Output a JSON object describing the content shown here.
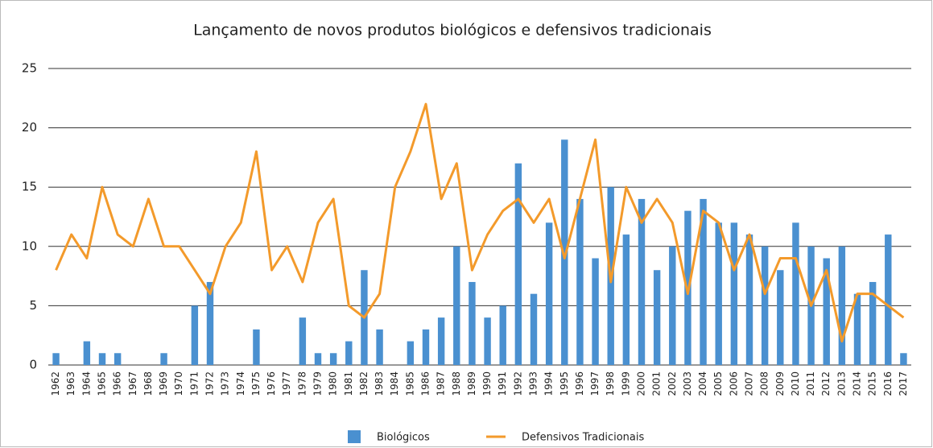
{
  "chart_data": {
    "type": "bar_line",
    "title": "Lançamento de novos produtos biológicos e defensivos tradicionais",
    "categories": [
      "1962",
      "1963",
      "1964",
      "1965",
      "1966",
      "1967",
      "1968",
      "1969",
      "1970",
      "1971",
      "1972",
      "1973",
      "1974",
      "1975",
      "1976",
      "1977",
      "1978",
      "1979",
      "1980",
      "1981",
      "1982",
      "1983",
      "1984",
      "1985",
      "1986",
      "1987",
      "1988",
      "1989",
      "1990",
      "1991",
      "1992",
      "1993",
      "1994",
      "1995",
      "1996",
      "1997",
      "1998",
      "1999",
      "2000",
      "2001",
      "2002",
      "2003",
      "2004",
      "2005",
      "2006",
      "2007",
      "2008",
      "2009",
      "2010",
      "2011",
      "2012",
      "2013",
      "2014",
      "2015",
      "2016",
      "2017"
    ],
    "series": [
      {
        "name": "Biológicos",
        "type": "bar",
        "color": "#4a90d0",
        "values": [
          1,
          0,
          2,
          1,
          1,
          0,
          0,
          1,
          0,
          5,
          7,
          0,
          0,
          3,
          0,
          0,
          4,
          1,
          1,
          2,
          8,
          3,
          0,
          2,
          3,
          4,
          10,
          7,
          4,
          5,
          17,
          6,
          12,
          19,
          14,
          9,
          15,
          11,
          14,
          8,
          10,
          13,
          14,
          12,
          12,
          11,
          10,
          8,
          12,
          10,
          9,
          10,
          6,
          7,
          11,
          1
        ]
      },
      {
        "name": "Defensivos Tradicionais",
        "type": "line",
        "color": "#f39a2b",
        "values": [
          8,
          11,
          9,
          15,
          11,
          10,
          14,
          10,
          10,
          8,
          6,
          10,
          12,
          18,
          8,
          10,
          7,
          12,
          14,
          5,
          4,
          6,
          15,
          18,
          22,
          14,
          17,
          8,
          11,
          13,
          14,
          12,
          14,
          9,
          14,
          19,
          7,
          15,
          12,
          14,
          12,
          6,
          13,
          12,
          8,
          11,
          6,
          9,
          9,
          5,
          8,
          2,
          6,
          6,
          5,
          4
        ]
      }
    ],
    "ylim": [
      0,
      25
    ],
    "yticks": [
      0,
      5,
      10,
      15,
      20,
      25
    ],
    "grid": true,
    "legend": "bottom"
  }
}
